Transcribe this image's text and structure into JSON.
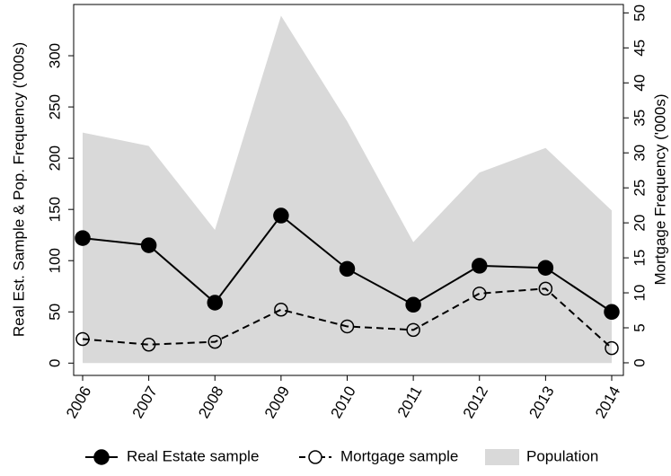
{
  "chart_data": {
    "type": "line",
    "categories": [
      "2006",
      "2007",
      "2008",
      "2009",
      "2010",
      "2011",
      "2012",
      "2013",
      "2014"
    ],
    "ylabel": "Real Est. Sample & Pop. Frequency ('000s)",
    "y2label": "Mortgage Frequency ('000s)",
    "ylim": [
      -12,
      350
    ],
    "yticks": [
      0,
      50,
      100,
      150,
      200,
      250,
      300
    ],
    "y2lim": [
      -1.8,
      51.2
    ],
    "y2ticks": [
      0,
      5,
      10,
      15,
      20,
      25,
      30,
      35,
      40,
      45,
      50
    ],
    "legend": "bottom",
    "series": [
      {
        "name": "Real Estate sample",
        "color": "#000000",
        "style": "solid",
        "marker": "filled",
        "values": [
          122,
          115,
          59,
          144,
          92,
          57,
          95,
          93,
          50
        ]
      },
      {
        "name": "Mortgage sample",
        "color": "#000000",
        "style": "dashed",
        "marker": "open",
        "axis": "y2",
        "values": [
          3.4,
          2.6,
          3.0,
          7.6,
          5.2,
          4.7,
          9.9,
          10.6,
          2.1
        ]
      },
      {
        "name": "Population",
        "color": "#d9d9d9",
        "style": "area",
        "values": [
          225,
          212,
          130,
          339,
          236,
          118,
          186,
          210,
          149
        ]
      }
    ]
  }
}
